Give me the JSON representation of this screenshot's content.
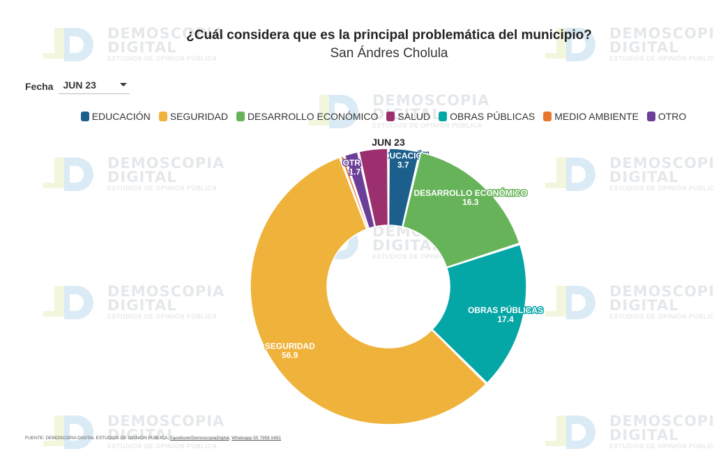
{
  "header": {
    "title": "¿Cuál considera que es la principal problemática del municipio?",
    "subtitle": "San Ándres Cholula"
  },
  "filter": {
    "label": "Fecha",
    "selected": "JUN 23"
  },
  "watermark": {
    "line1": "DEMOSCOPIA",
    "line2": "DIGITAL",
    "line3": "ESTUDIOS DE OPINIÓN PÚBLICA"
  },
  "footer": {
    "source": "FUENTE: DEMOSCOPIA DIGITAL ESTUDIOS DE OPINIÓN PÚBLICA,",
    "link1": "Facebook/DemoscopiaDigital",
    "link2": "Whatsapp 55 7958 0491"
  },
  "chart_data": {
    "type": "pie",
    "variant": "donut",
    "ring_label": "JUN 23",
    "categories": [
      "EDUCACIÓN",
      "SEGURIDAD",
      "DESARROLLO ECONÓMICO",
      "SALUD",
      "OBRAS PÚBLICAS",
      "MEDIO AMBIENTE",
      "OTRO"
    ],
    "colors": [
      "#1d5f8c",
      "#efb23b",
      "#67b35a",
      "#9c2f6e",
      "#05a6a6",
      "#e8772d",
      "#6b3f97"
    ],
    "slices": [
      {
        "label": "EDUCACIÓN",
        "value": 3.7,
        "color": "#1d5f8c"
      },
      {
        "label": "DESARROLLO ECONÓMICO",
        "value": 16.3,
        "color": "#67b35a"
      },
      {
        "label": "OBRAS PÚBLICAS",
        "value": 17.4,
        "color": "#05a6a6"
      },
      {
        "label": "SEGURIDAD",
        "value": 56.9,
        "color": "#efb23b"
      },
      {
        "label": "MEDIO AMBIENTE",
        "value": 0.5,
        "color": "#e8772d"
      },
      {
        "label": "OTRO",
        "value": 1.7,
        "color": "#6b3f97"
      },
      {
        "label": "SALUD",
        "value": 3.5,
        "color": "#9c2f6e"
      }
    ],
    "shown_labels": [
      "EDUCACIÓN",
      "DESARROLLO ECONÓMICO",
      "OBRAS PÚBLICAS",
      "SEGURIDAD",
      "OTRO"
    ],
    "legend_placement": "top"
  }
}
